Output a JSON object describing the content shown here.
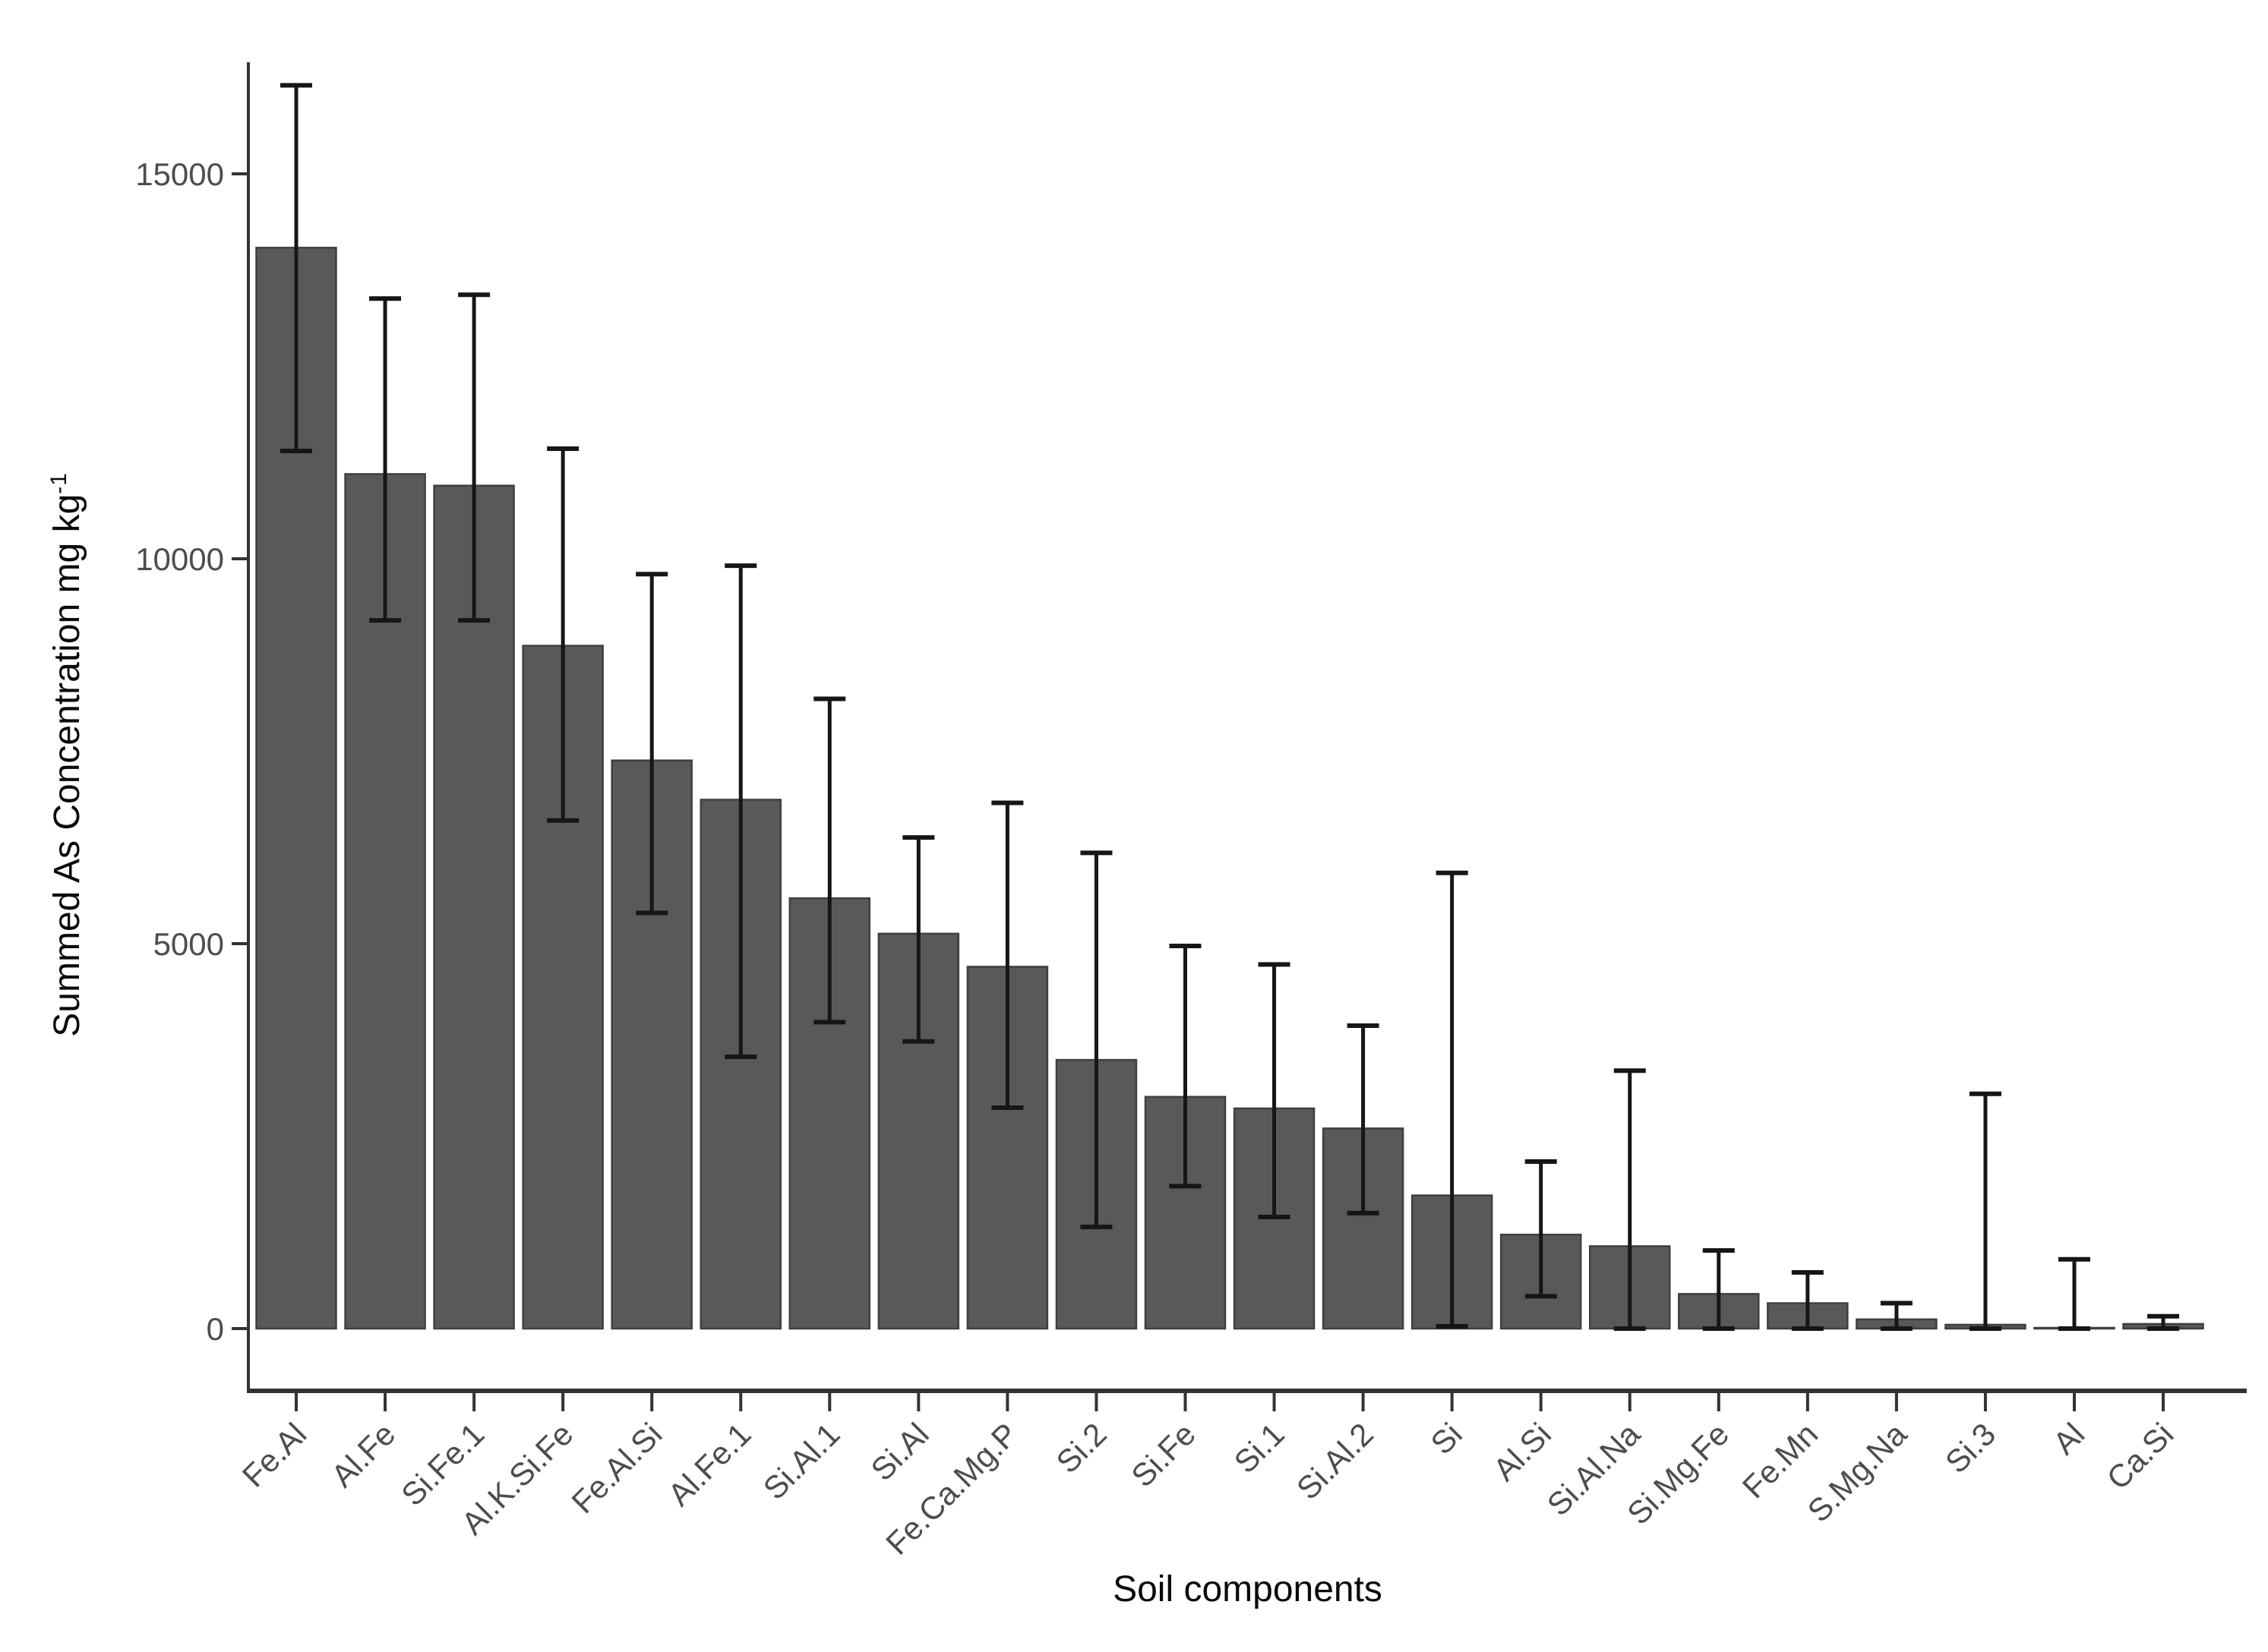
{
  "figure": {
    "background_color": "#ffffff"
  },
  "chart_data": {
    "type": "bar",
    "title": "",
    "xlabel": "Soil components",
    "ylabel": "Summed As Concentration mg kg",
    "ylabel_superscript": "-1",
    "categories": [
      "Fe.Al",
      "Al.Fe",
      "Si.Fe.1",
      "Al.K.Si.Fe",
      "Fe.Al.Si",
      "Al.Fe.1",
      "Si.Al.1",
      "Si.Al",
      "Fe.Ca.Mg.P",
      "Si.2",
      "Si.Fe",
      "Si.1",
      "Si.Al.2",
      "Si",
      "Al.Si",
      "Si.Al.Na",
      "Si.Mg.Fe",
      "Fe.Mn",
      "S.Mg.Na",
      "Si.3",
      "Al",
      "Ca.Si"
    ],
    "values": [
      14040,
      11100,
      10950,
      8870,
      7380,
      6870,
      5590,
      5130,
      4700,
      3490,
      3010,
      2860,
      2600,
      1730,
      1220,
      1070,
      450,
      330,
      120,
      50,
      10,
      60
    ],
    "error_low": [
      11400,
      9200,
      9200,
      6600,
      5400,
      3530,
      3980,
      3730,
      2870,
      1320,
      1850,
      1450,
      1500,
      30,
      420,
      0,
      0,
      0,
      0,
      0,
      0,
      0
    ],
    "error_high": [
      16150,
      13380,
      13430,
      11430,
      9800,
      9910,
      8180,
      6380,
      6830,
      6180,
      4970,
      4730,
      3935,
      5920,
      2170,
      3350,
      1015,
      730,
      330,
      3050,
      900,
      160
    ],
    "yticks": [
      0,
      5000,
      10000,
      15000
    ],
    "ytick_labels": [
      "0",
      "5000",
      "10000",
      "15000"
    ],
    "ylim": [
      0,
      16450
    ],
    "grid": "off",
    "legend": "none",
    "bar_color": "#595959",
    "bar_edge_color": "#3f3f3f",
    "error_bar_color": "#161616",
    "axis_line_color": "#333333",
    "tick_label_color": "#4d4d4d",
    "axis_title_color": "#0a0a0a"
  }
}
